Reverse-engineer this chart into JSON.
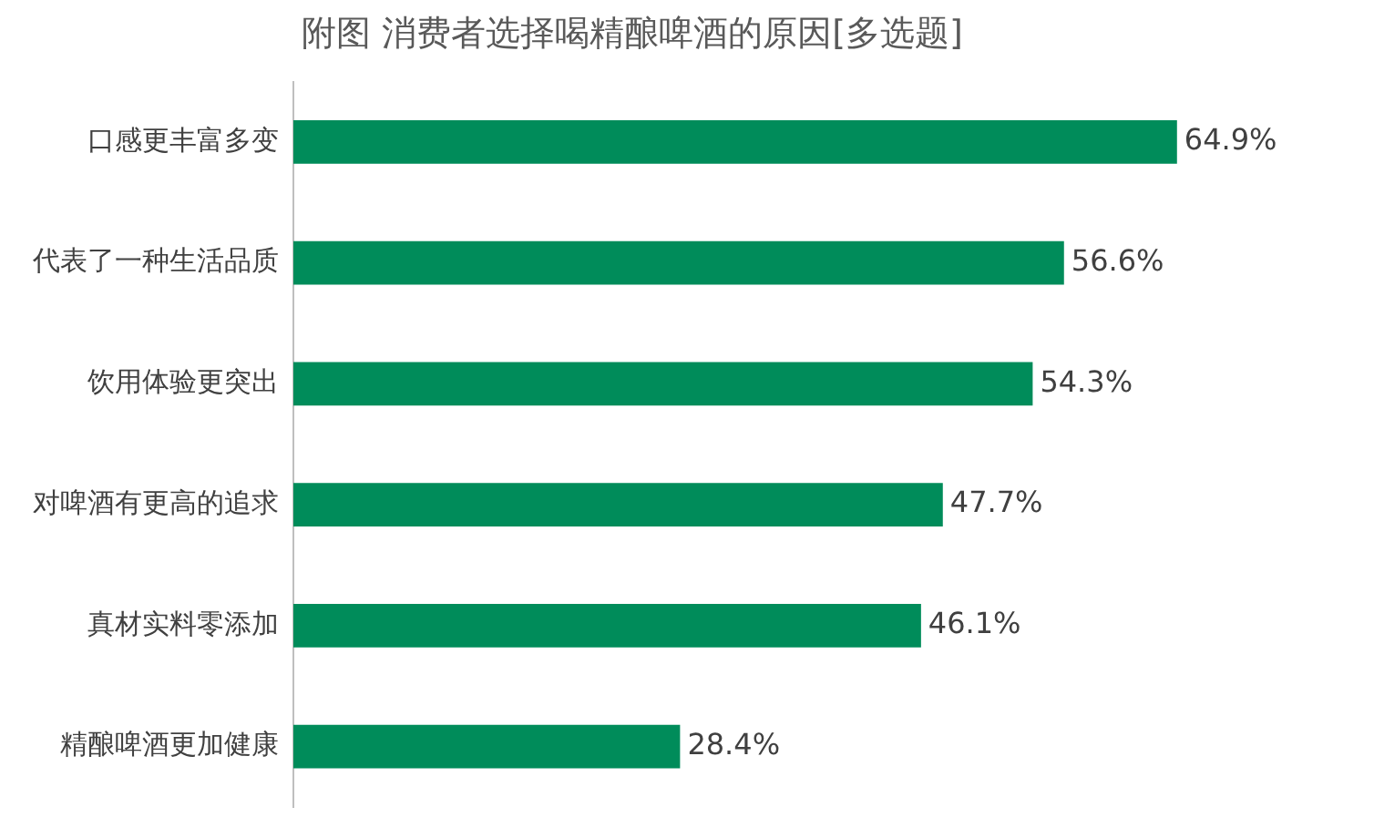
{
  "chart_data": {
    "type": "bar",
    "orientation": "horizontal",
    "title": "附图 消费者选择喝精酿啤酒的原因[多选题]",
    "categories": [
      "口感更丰富多变",
      "代表了一种生活品质",
      "饮用体验更突出",
      "对啤酒有更高的追求",
      "真材实料零添加",
      "精酿啤酒更加健康"
    ],
    "values": [
      64.9,
      56.6,
      54.3,
      47.7,
      46.1,
      28.4
    ],
    "value_labels": [
      "64.9%",
      "56.6%",
      "54.3%",
      "47.7%",
      "46.1%",
      "28.4%"
    ],
    "color": "#008c5a",
    "tick_labels": "y",
    "legend": false
  }
}
